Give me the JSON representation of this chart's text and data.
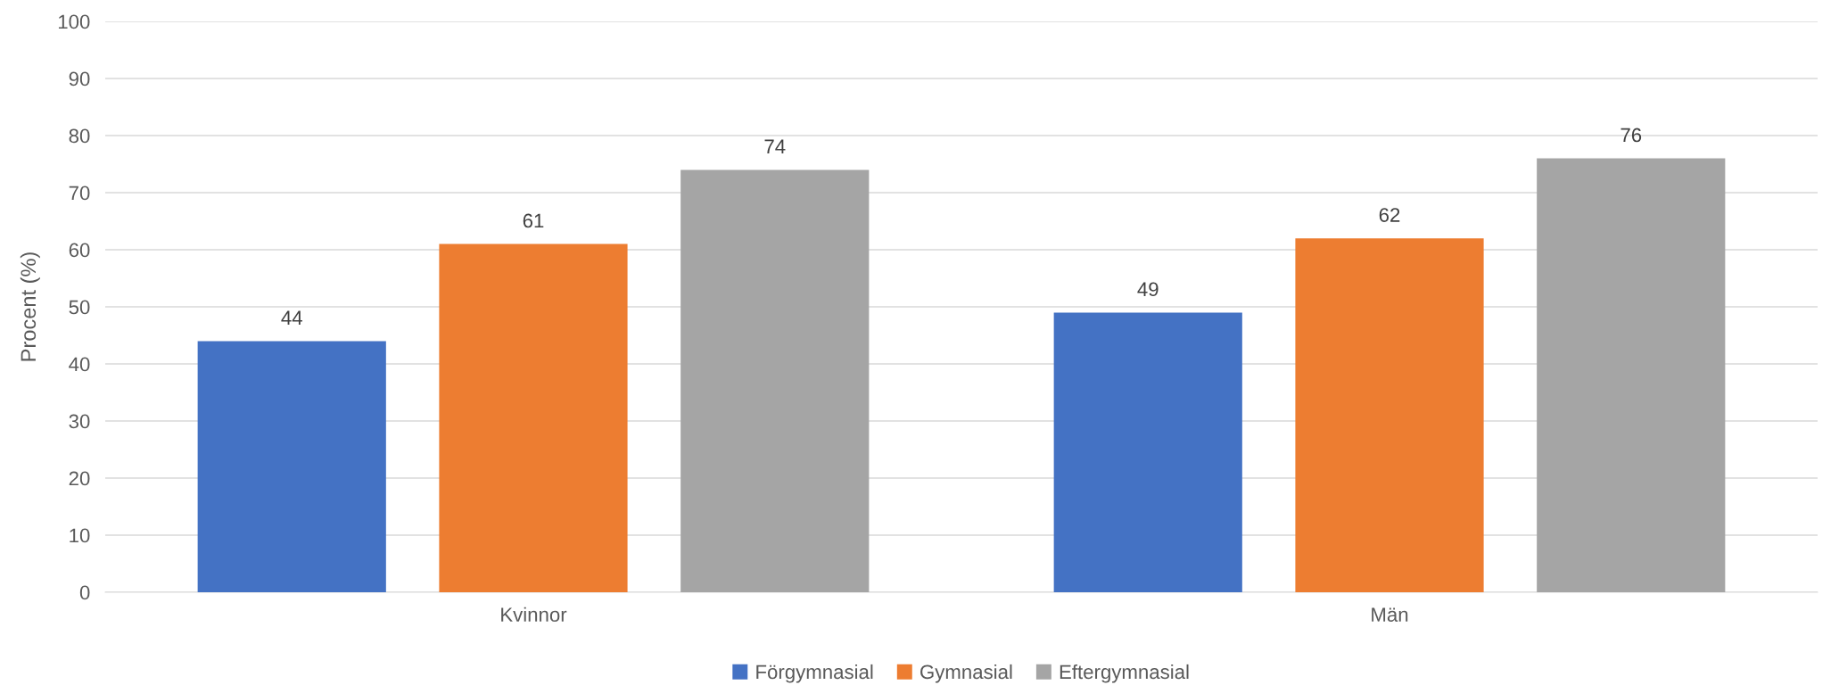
{
  "chart_data": {
    "type": "bar",
    "ylabel": "Procent (%)",
    "categories": [
      "Kvinnor",
      "Män"
    ],
    "series": [
      {
        "name": "Förgymnasial",
        "color": "#4472c4",
        "values": [
          44,
          49
        ]
      },
      {
        "name": "Gymnasial",
        "color": "#ed7d31",
        "values": [
          61,
          62
        ]
      },
      {
        "name": "Eftergymnasial",
        "color": "#a5a5a5",
        "values": [
          74,
          76
        ]
      }
    ],
    "ylim": [
      0,
      100
    ],
    "yticks": [
      0,
      10,
      20,
      30,
      40,
      50,
      60,
      70,
      80,
      90,
      100
    ],
    "grid": "y",
    "legend": "bottom",
    "data_labels": true
  }
}
